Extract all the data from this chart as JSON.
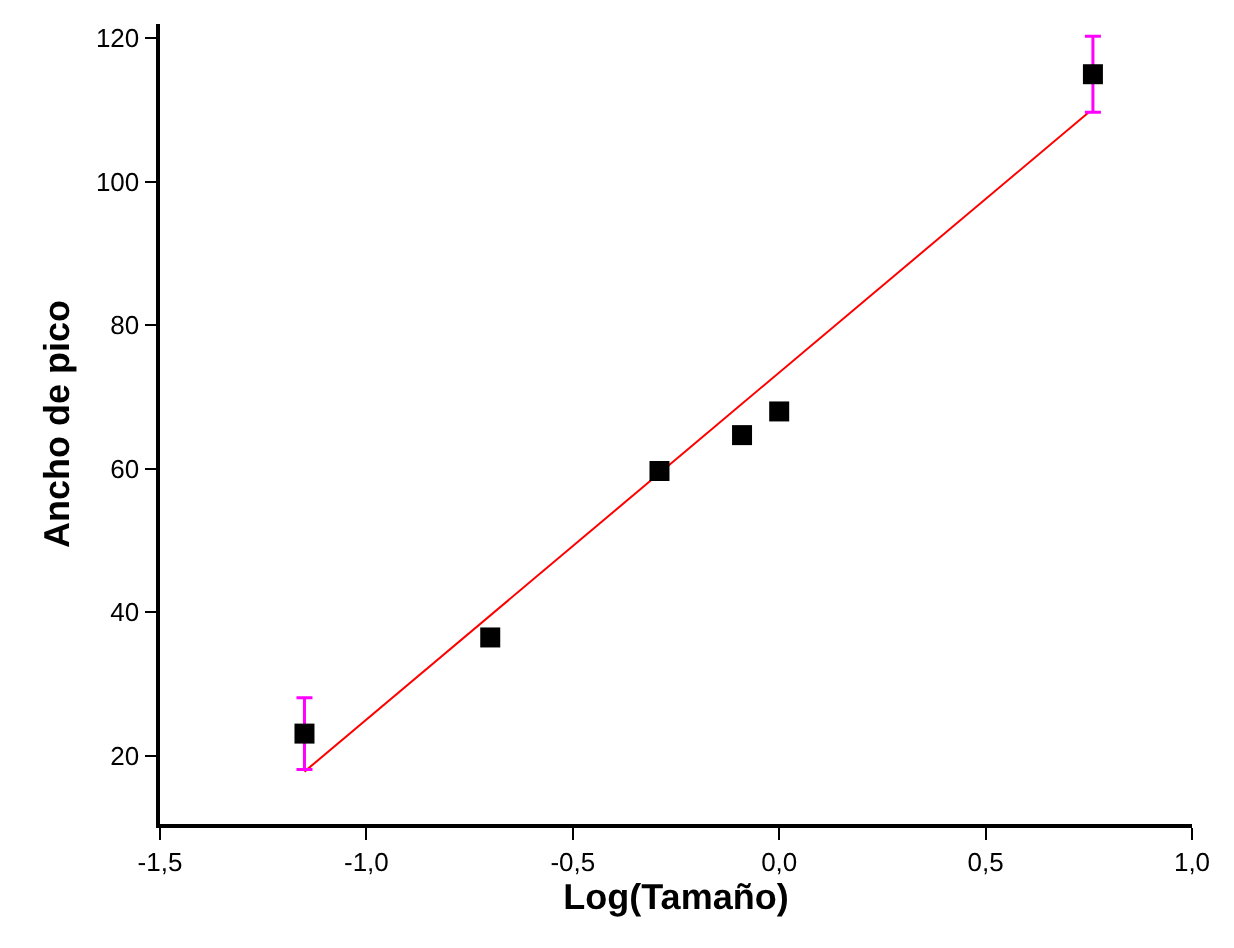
{
  "chart_data": {
    "type": "scatter",
    "xlabel": "Log(Tamaño)",
    "ylabel": "Ancho de pico",
    "xlim": [
      -1.5,
      1.0
    ],
    "ylim": [
      10.5,
      122
    ],
    "xticks": [
      {
        "value": -1.5,
        "label": "-1,5"
      },
      {
        "value": -1.0,
        "label": "-1,0"
      },
      {
        "value": -0.5,
        "label": "-0,5"
      },
      {
        "value": 0.0,
        "label": "0,0"
      },
      {
        "value": 0.5,
        "label": "0,5"
      },
      {
        "value": 1.0,
        "label": "1,0"
      }
    ],
    "yticks": [
      20,
      40,
      60,
      80,
      100,
      120
    ],
    "grid": false,
    "legend": false,
    "series": [
      {
        "marker": "square",
        "color": "#000000",
        "x": [
          -1.15,
          -0.7,
          -0.29,
          -0.09,
          0.0,
          0.76
        ],
        "values": [
          23.1,
          36.5,
          59.7,
          64.7,
          68.0,
          115.0
        ],
        "errors": [
          5,
          null,
          null,
          null,
          null,
          5.3
        ]
      },
      {
        "type": "line",
        "color": "#ff0000",
        "x": [
          -1.15,
          0.75
        ],
        "values": [
          17.8,
          109.7
        ],
        "marker": "none",
        "line_style": "solid"
      }
    ]
  }
}
